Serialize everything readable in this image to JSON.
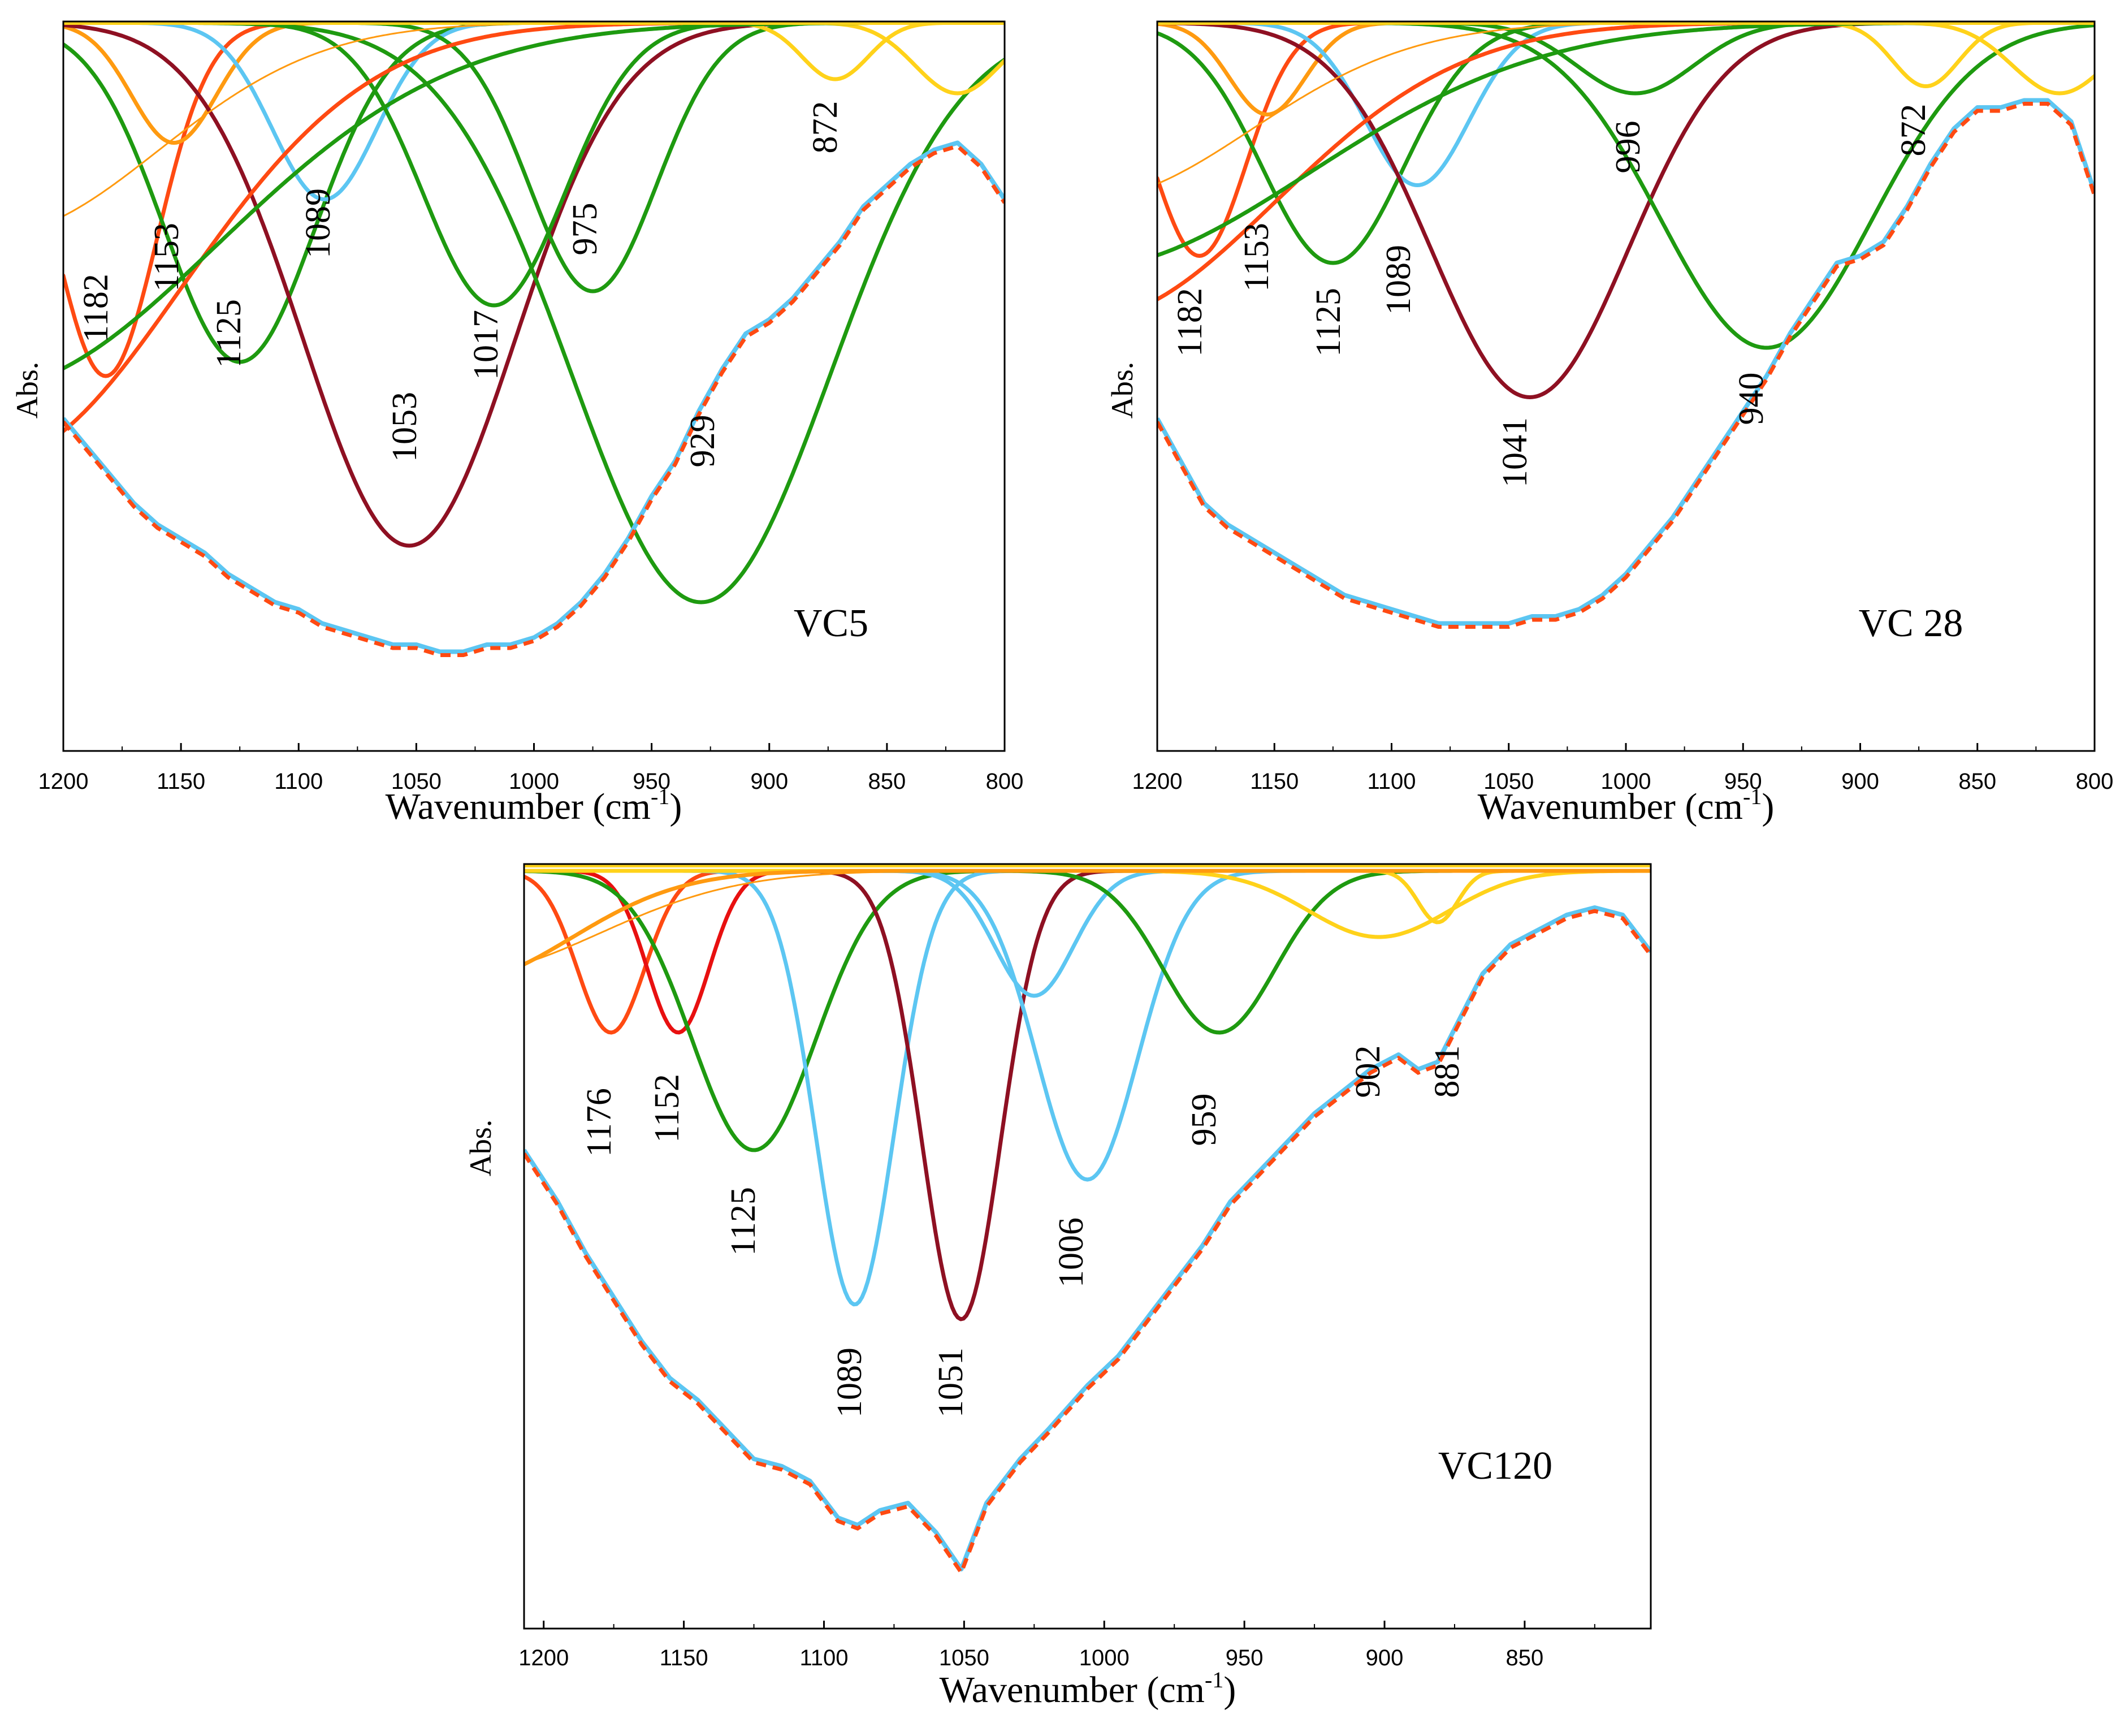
{
  "figure_title": "",
  "colors": {
    "red_orange": "#FF4A12",
    "orange": "#FF9A10",
    "yellow": "#FFD21A",
    "green": "#1E9A10",
    "dark_red": "#8E1022",
    "red": "#E81010",
    "light_blue": "#5CC6F2",
    "fit_dashed": "#FF4A12",
    "axis": "#000000"
  },
  "chart_data": [
    {
      "type": "line",
      "panel_label": "VC5",
      "xlabel_main": "Wavenumber (cm",
      "xlabel_sup": "-1",
      "xlabel_tail": ")",
      "ylabel": "Abs.",
      "xlim": [
        1200,
        800
      ],
      "ylim": [
        0,
        1
      ],
      "x_ticks": [
        "1200",
        "1150",
        "1100",
        "1050",
        "1000",
        "950",
        "900",
        "850",
        "800"
      ],
      "x_tick_values": [
        1200,
        1150,
        1100,
        1050,
        1000,
        950,
        900,
        850,
        800
      ],
      "peaks": [
        {
          "label": "1182",
          "center": 1182,
          "depth": 0.5,
          "width": 22,
          "color": "red_orange",
          "stroke": 7
        },
        {
          "label": "1153",
          "center": 1153,
          "depth": 0.17,
          "width": 18,
          "color": "orange",
          "stroke": 7
        },
        {
          "label": "1125",
          "center": 1125,
          "depth": 0.48,
          "width": 32,
          "color": "green",
          "stroke": 7
        },
        {
          "label": "1089",
          "center": 1089,
          "depth": 0.25,
          "width": 22,
          "color": "light_blue",
          "stroke": 7
        },
        {
          "label": "1053",
          "center": 1053,
          "depth": 0.74,
          "width": 45,
          "color": "dark_red",
          "stroke": 7
        },
        {
          "label": "1017",
          "center": 1017,
          "depth": 0.4,
          "width": 30,
          "color": "green",
          "stroke": 7
        },
        {
          "label": "975",
          "center": 975,
          "depth": 0.38,
          "width": 27,
          "color": "green",
          "stroke": 7
        },
        {
          "label": "929",
          "center": 929,
          "depth": 0.82,
          "width": 55,
          "color": "green",
          "stroke": 7
        },
        {
          "label": "872",
          "center": 872,
          "depth": 0.08,
          "width": 14,
          "color": "yellow",
          "stroke": 7
        },
        {
          "label": "",
          "center": 820,
          "depth": 0.1,
          "width": 18,
          "color": "yellow",
          "stroke": 7
        },
        {
          "label": "",
          "center": 1230,
          "depth": 0.62,
          "width": 80,
          "color": "red_orange",
          "stroke": 7
        },
        {
          "label": "",
          "center": 1235,
          "depth": 0.52,
          "width": 100,
          "color": "green",
          "stroke": 7
        },
        {
          "label": "",
          "center": 1230,
          "depth": 0.3,
          "width": 70,
          "color": "orange",
          "stroke": 3
        }
      ],
      "envelope": {
        "x": [
          1200,
          1190,
          1180,
          1170,
          1160,
          1150,
          1140,
          1130,
          1120,
          1110,
          1100,
          1090,
          1080,
          1070,
          1060,
          1050,
          1040,
          1030,
          1020,
          1010,
          1000,
          990,
          980,
          970,
          960,
          950,
          940,
          930,
          920,
          910,
          900,
          890,
          880,
          870,
          860,
          850,
          840,
          830,
          820,
          810,
          800
        ],
        "y": [
          0.56,
          0.6,
          0.64,
          0.68,
          0.71,
          0.73,
          0.75,
          0.78,
          0.8,
          0.82,
          0.83,
          0.85,
          0.86,
          0.87,
          0.88,
          0.88,
          0.89,
          0.89,
          0.88,
          0.88,
          0.87,
          0.85,
          0.82,
          0.78,
          0.73,
          0.67,
          0.62,
          0.55,
          0.49,
          0.44,
          0.42,
          0.39,
          0.35,
          0.31,
          0.26,
          0.23,
          0.2,
          0.18,
          0.17,
          0.2,
          0.25
        ]
      }
    },
    {
      "type": "line",
      "panel_label": "VC 28",
      "xlabel_main": "Wavenumber (cm",
      "xlabel_sup": "-1",
      "xlabel_tail": ")",
      "ylabel": "Abs.",
      "xlim": [
        1200,
        800
      ],
      "ylim": [
        0,
        1
      ],
      "x_ticks": [
        "1200",
        "1150",
        "1100",
        "1050",
        "1000",
        "950",
        "900",
        "850",
        "800"
      ],
      "x_tick_values": [
        1200,
        1150,
        1100,
        1050,
        1000,
        950,
        900,
        850,
        800
      ],
      "peaks": [
        {
          "label": "1182",
          "center": 1182,
          "depth": 0.33,
          "width": 20,
          "color": "red_orange",
          "stroke": 7
        },
        {
          "label": "1153",
          "center": 1153,
          "depth": 0.13,
          "width": 16,
          "color": "orange",
          "stroke": 7
        },
        {
          "label": "1125",
          "center": 1125,
          "depth": 0.34,
          "width": 30,
          "color": "green",
          "stroke": 7
        },
        {
          "label": "1089",
          "center": 1089,
          "depth": 0.23,
          "width": 22,
          "color": "light_blue",
          "stroke": 7
        },
        {
          "label": "1041",
          "center": 1041,
          "depth": 0.53,
          "width": 42,
          "color": "dark_red",
          "stroke": 7
        },
        {
          "label": "996",
          "center": 996,
          "depth": 0.1,
          "width": 25,
          "color": "green",
          "stroke": 7
        },
        {
          "label": "940",
          "center": 940,
          "depth": 0.46,
          "width": 45,
          "color": "green",
          "stroke": 7
        },
        {
          "label": "872",
          "center": 872,
          "depth": 0.09,
          "width": 14,
          "color": "yellow",
          "stroke": 7
        },
        {
          "label": "",
          "center": 815,
          "depth": 0.1,
          "width": 20,
          "color": "yellow",
          "stroke": 7
        },
        {
          "label": "",
          "center": 1230,
          "depth": 0.42,
          "width": 80,
          "color": "red_orange",
          "stroke": 7
        },
        {
          "label": "",
          "center": 1235,
          "depth": 0.35,
          "width": 100,
          "color": "green",
          "stroke": 7
        },
        {
          "label": "",
          "center": 1230,
          "depth": 0.25,
          "width": 70,
          "color": "orange",
          "stroke": 3
        }
      ],
      "envelope": {
        "x": [
          1200,
          1190,
          1180,
          1170,
          1160,
          1150,
          1140,
          1130,
          1120,
          1110,
          1100,
          1090,
          1080,
          1070,
          1060,
          1050,
          1040,
          1030,
          1020,
          1010,
          1000,
          990,
          980,
          970,
          960,
          950,
          940,
          930,
          920,
          910,
          900,
          890,
          880,
          870,
          860,
          850,
          840,
          830,
          820,
          810,
          800
        ],
        "y": [
          0.56,
          0.62,
          0.68,
          0.71,
          0.73,
          0.75,
          0.77,
          0.79,
          0.81,
          0.82,
          0.83,
          0.84,
          0.85,
          0.85,
          0.85,
          0.85,
          0.84,
          0.84,
          0.83,
          0.81,
          0.78,
          0.74,
          0.7,
          0.65,
          0.6,
          0.55,
          0.5,
          0.44,
          0.39,
          0.34,
          0.33,
          0.31,
          0.26,
          0.2,
          0.15,
          0.12,
          0.12,
          0.11,
          0.11,
          0.14,
          0.24
        ]
      }
    },
    {
      "type": "line",
      "panel_label": "VC120",
      "xlabel_main": "Wavenumber (cm",
      "xlabel_sup": "-1",
      "xlabel_tail": ")",
      "ylabel": "Abs.",
      "xlim": [
        1207,
        805
      ],
      "ylim": [
        0,
        1
      ],
      "x_ticks": [
        "1200",
        "1150",
        "1100",
        "1050",
        "1000",
        "950",
        "900",
        "850"
      ],
      "x_tick_values": [
        1200,
        1150,
        1100,
        1050,
        1000,
        950,
        900,
        850
      ],
      "peaks": [
        {
          "label": "1176",
          "center": 1176,
          "depth": 0.22,
          "width": 12,
          "color": "red_orange",
          "stroke": 7
        },
        {
          "label": "1152",
          "center": 1152,
          "depth": 0.22,
          "width": 11,
          "color": "red",
          "stroke": 7
        },
        {
          "label": "1125",
          "center": 1125,
          "depth": 0.38,
          "width": 22,
          "color": "green",
          "stroke": 7
        },
        {
          "label": "1089",
          "center": 1089,
          "depth": 0.59,
          "width": 14,
          "color": "light_blue",
          "stroke": 7
        },
        {
          "label": "1051",
          "center": 1051,
          "depth": 0.61,
          "width": 14,
          "color": "dark_red",
          "stroke": 7
        },
        {
          "label": "1006",
          "center": 1006,
          "depth": 0.42,
          "width": 18,
          "color": "light_blue",
          "stroke": 7
        },
        {
          "label": "",
          "center": 1025,
          "depth": 0.17,
          "width": 14,
          "color": "light_blue",
          "stroke": 7
        },
        {
          "label": "959",
          "center": 959,
          "depth": 0.22,
          "width": 20,
          "color": "green",
          "stroke": 7
        },
        {
          "label": "902",
          "center": 902,
          "depth": 0.09,
          "width": 25,
          "color": "yellow",
          "stroke": 7
        },
        {
          "label": "881",
          "center": 881,
          "depth": 0.07,
          "width": 7,
          "color": "yellow",
          "stroke": 7
        },
        {
          "label": "",
          "center": 1230,
          "depth": 0.15,
          "width": 40,
          "color": "orange",
          "stroke": 7
        },
        {
          "label": "",
          "center": 1230,
          "depth": 0.14,
          "width": 50,
          "color": "orange",
          "stroke": 3
        }
      ],
      "envelope": {
        "x": [
          1207,
          1195,
          1185,
          1175,
          1165,
          1155,
          1145,
          1135,
          1125,
          1115,
          1105,
          1095,
          1088,
          1080,
          1070,
          1060,
          1051,
          1042,
          1030,
          1020,
          1006,
          995,
          985,
          975,
          965,
          955,
          945,
          935,
          925,
          915,
          905,
          895,
          888,
          881,
          873,
          865,
          855,
          845,
          835,
          825,
          815,
          805
        ],
        "y": [
          0.38,
          0.45,
          0.52,
          0.58,
          0.64,
          0.69,
          0.72,
          0.76,
          0.8,
          0.81,
          0.83,
          0.88,
          0.89,
          0.87,
          0.86,
          0.9,
          0.95,
          0.86,
          0.8,
          0.76,
          0.7,
          0.66,
          0.61,
          0.56,
          0.51,
          0.45,
          0.41,
          0.37,
          0.33,
          0.3,
          0.27,
          0.25,
          0.27,
          0.26,
          0.2,
          0.14,
          0.1,
          0.08,
          0.06,
          0.05,
          0.06,
          0.11
        ]
      }
    }
  ]
}
